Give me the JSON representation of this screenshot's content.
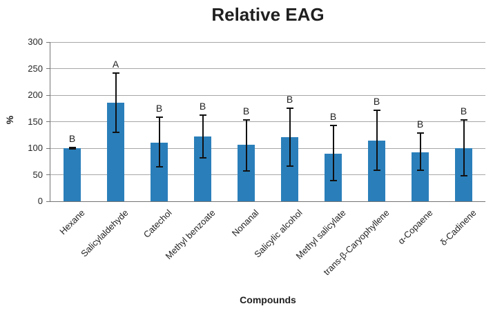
{
  "chart_data": {
    "type": "bar",
    "title": "Relative EAG",
    "xlabel": "Compounds",
    "ylabel": "%",
    "ylim": [
      0,
      300
    ],
    "yticks": [
      0,
      50,
      100,
      150,
      200,
      250,
      300
    ],
    "grid": true,
    "legend": false,
    "categories": [
      "Hexane",
      "Salicylaldehyde",
      "Catechol",
      "Methyl benzoate",
      "Nonanal",
      "Salicylic alcohol",
      "Methyl salicylate",
      "trans-β-Caryophyllene",
      "α-Copaene",
      "δ-Cadinene"
    ],
    "values": [
      100,
      186,
      111,
      122,
      106,
      121,
      90,
      114,
      92,
      100
    ],
    "error_low": [
      99,
      130,
      65,
      82,
      57,
      66,
      39,
      59,
      58,
      48
    ],
    "error_high": [
      101,
      241,
      158,
      162,
      153,
      175,
      143,
      172,
      129,
      153
    ],
    "significance_letters": [
      "B",
      "A",
      "B",
      "B",
      "B",
      "B",
      "B",
      "B",
      "B",
      "B"
    ]
  },
  "colors": {
    "bar": "#2a7fba",
    "gridline": "#a6a6a6",
    "axis": "#737373",
    "error_bar": "#111111",
    "text": "#1f1f1f"
  }
}
